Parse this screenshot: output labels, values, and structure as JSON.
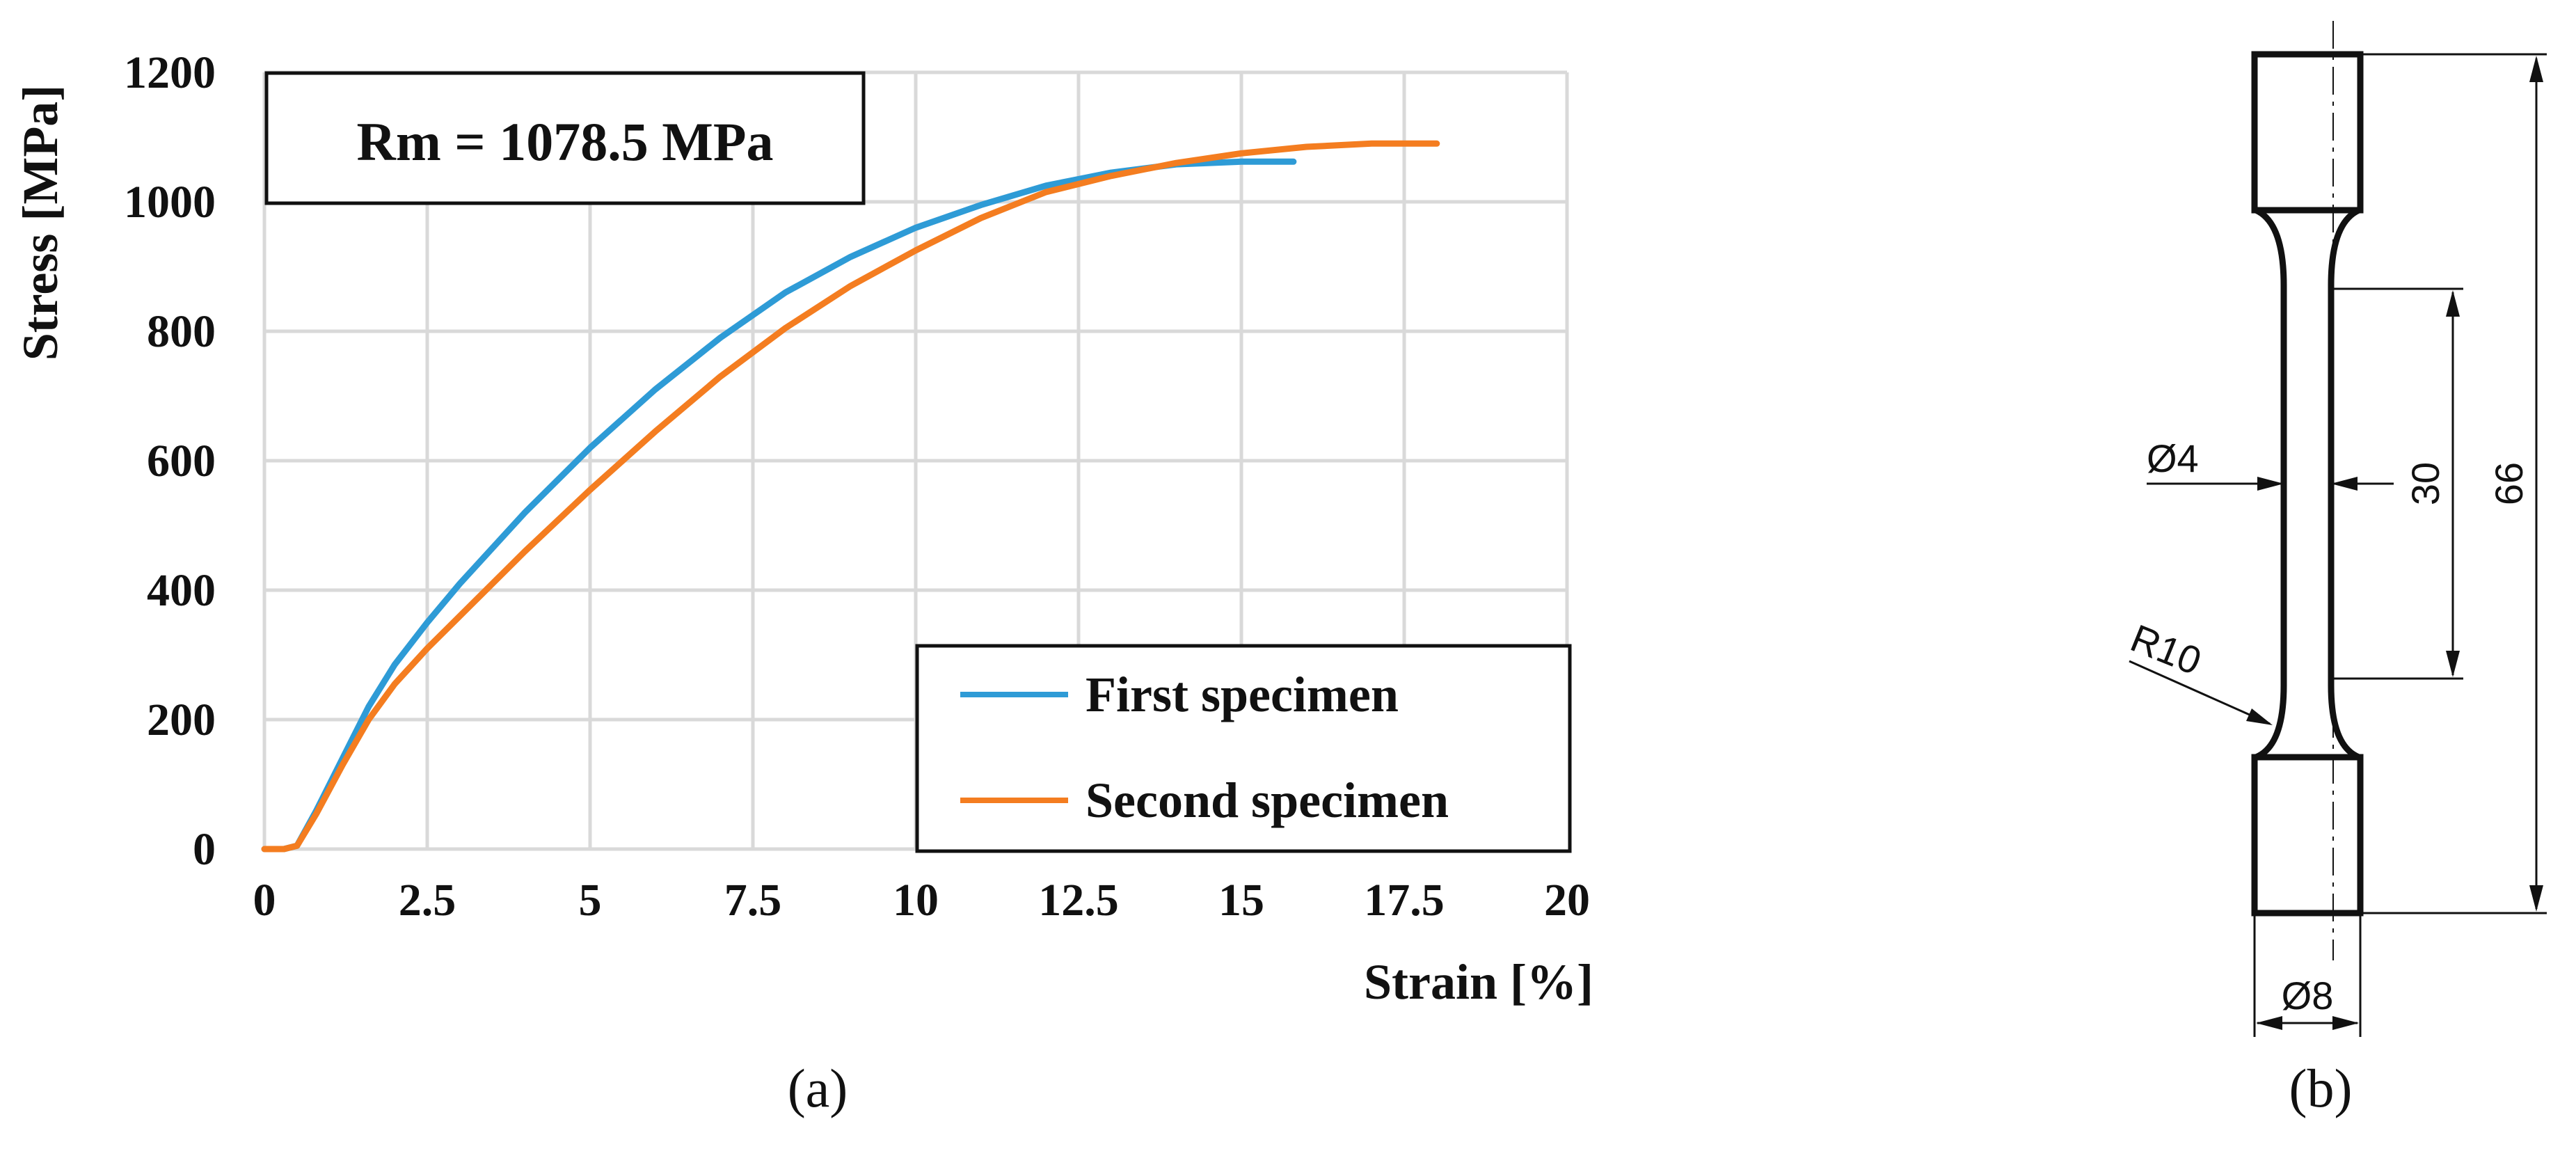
{
  "chart_data": {
    "type": "line",
    "title": "",
    "xlabel": "Strain  [%]",
    "ylabel": "Stress [MPa]",
    "xlim": [
      0,
      20
    ],
    "ylim": [
      0,
      1200
    ],
    "xticks": [
      0,
      2.5,
      5,
      7.5,
      10,
      12.5,
      15,
      17.5,
      20
    ],
    "xtick_labels": [
      "0",
      "2.5",
      "5",
      "7.5",
      "10",
      "12.5",
      "15",
      "17.5",
      "20"
    ],
    "yticks": [
      0,
      200,
      400,
      600,
      800,
      1000,
      1200
    ],
    "ytick_labels": [
      "0",
      "200",
      "400",
      "600",
      "800",
      "1000",
      "1200"
    ],
    "grid": true,
    "legend_position": "bottom-right",
    "annotation": "Rm = 1078.5 MPa",
    "series": [
      {
        "name": "First specimen",
        "color": "#2e9bd6",
        "x": [
          0,
          0.3,
          0.5,
          0.8,
          1.2,
          1.6,
          2.0,
          2.5,
          3.0,
          4.0,
          5.0,
          6.0,
          7.0,
          8.0,
          9.0,
          10.0,
          11.0,
          12.0,
          13.0,
          14.0,
          15.0,
          15.8
        ],
        "y": [
          0,
          0,
          5,
          60,
          140,
          220,
          285,
          350,
          410,
          520,
          620,
          710,
          790,
          860,
          915,
          960,
          995,
          1025,
          1045,
          1058,
          1062,
          1062
        ]
      },
      {
        "name": "Second specimen",
        "color": "#f47d20",
        "x": [
          0,
          0.3,
          0.5,
          0.8,
          1.2,
          1.6,
          2.0,
          2.5,
          3.0,
          4.0,
          5.0,
          6.0,
          7.0,
          8.0,
          9.0,
          10.0,
          11.0,
          12.0,
          13.0,
          14.0,
          15.0,
          16.0,
          17.0,
          18.0
        ],
        "y": [
          0,
          0,
          5,
          55,
          130,
          200,
          255,
          310,
          360,
          460,
          555,
          645,
          730,
          805,
          870,
          925,
          975,
          1015,
          1040,
          1060,
          1075,
          1085,
          1090,
          1090
        ]
      }
    ]
  },
  "labels": {
    "panel_a": "(a)",
    "panel_b": "(b)"
  },
  "drawing": {
    "dims": {
      "d_gauge": "Ø4",
      "gauge_length": "30",
      "total_length": "66",
      "fillet_radius": "R10",
      "d_grip": "Ø8"
    }
  }
}
